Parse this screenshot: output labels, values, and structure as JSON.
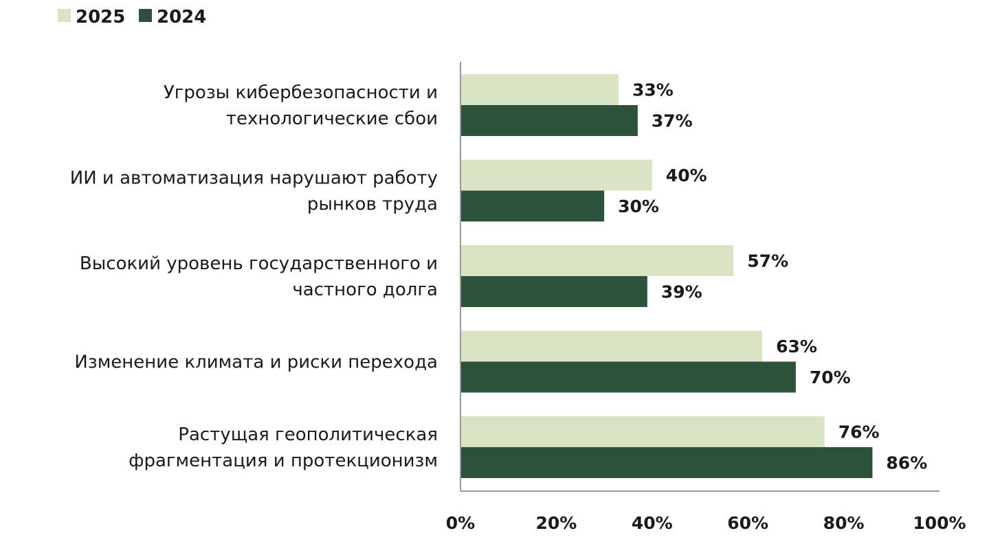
{
  "chart_data": {
    "type": "bar",
    "orientation": "horizontal",
    "categories": [
      [
        "Угрозы кибербезопасности и",
        "технологические сбои"
      ],
      [
        "ИИ и автоматизация нарушают работу",
        "рынков труда"
      ],
      [
        "Высокий уровень государственного и",
        "частного долга"
      ],
      [
        "Изменение климата и риски перехода"
      ],
      [
        "Растущая геополитическая",
        "фрагментация и протекционизм"
      ]
    ],
    "series": [
      {
        "name": "2025",
        "color": "#d9e4c4",
        "values": [
          33,
          40,
          57,
          63,
          76
        ],
        "labels": [
          "33%",
          "40%",
          "57%",
          "63%",
          "76%"
        ]
      },
      {
        "name": "2024",
        "color": "#2b523a",
        "values": [
          37,
          30,
          39,
          70,
          86
        ],
        "labels": [
          "37%",
          "30%",
          "39%",
          "70%",
          "86%"
        ]
      }
    ],
    "xlim": [
      0,
      100
    ],
    "xticks": [
      "0%",
      "20%",
      "40%",
      "60%",
      "80%",
      "100%"
    ],
    "xtick_values": [
      0,
      20,
      40,
      60,
      80,
      100
    ],
    "legend_position": "top-left",
    "grid": false,
    "axis_color": "#999999"
  }
}
